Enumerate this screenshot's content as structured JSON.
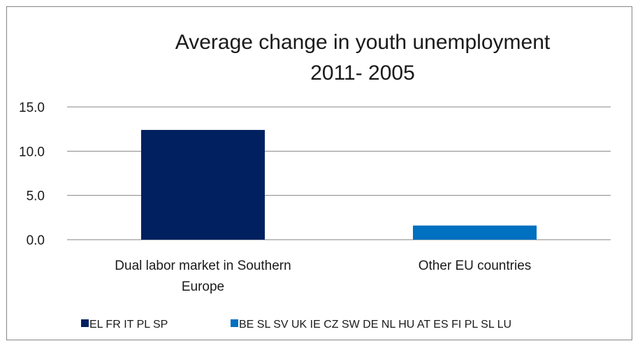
{
  "chart_data": {
    "type": "bar",
    "title": "Average change in youth unemployment",
    "subtitle": "2011- 2005",
    "categories": [
      [
        "Dual labor market in Southern",
        "Europe"
      ],
      [
        "Other EU countries"
      ]
    ],
    "series": [
      {
        "name": "EL FR  IT PL SP",
        "color": "#002060",
        "values": [
          12.4,
          null
        ]
      },
      {
        "name": "BE SL SV UK IE CZ SW DE NL HU AT ES FI PL SL LU",
        "color": "#0070C0",
        "values": [
          null,
          1.6
        ]
      }
    ],
    "ylim": [
      0,
      15
    ],
    "yticks": [
      0,
      5,
      10,
      15
    ],
    "ytick_labels": [
      "0.0",
      "5.0",
      "10.0",
      "15.0"
    ],
    "xlabel": "",
    "ylabel": "",
    "grid": true,
    "legend_position": "bottom"
  }
}
